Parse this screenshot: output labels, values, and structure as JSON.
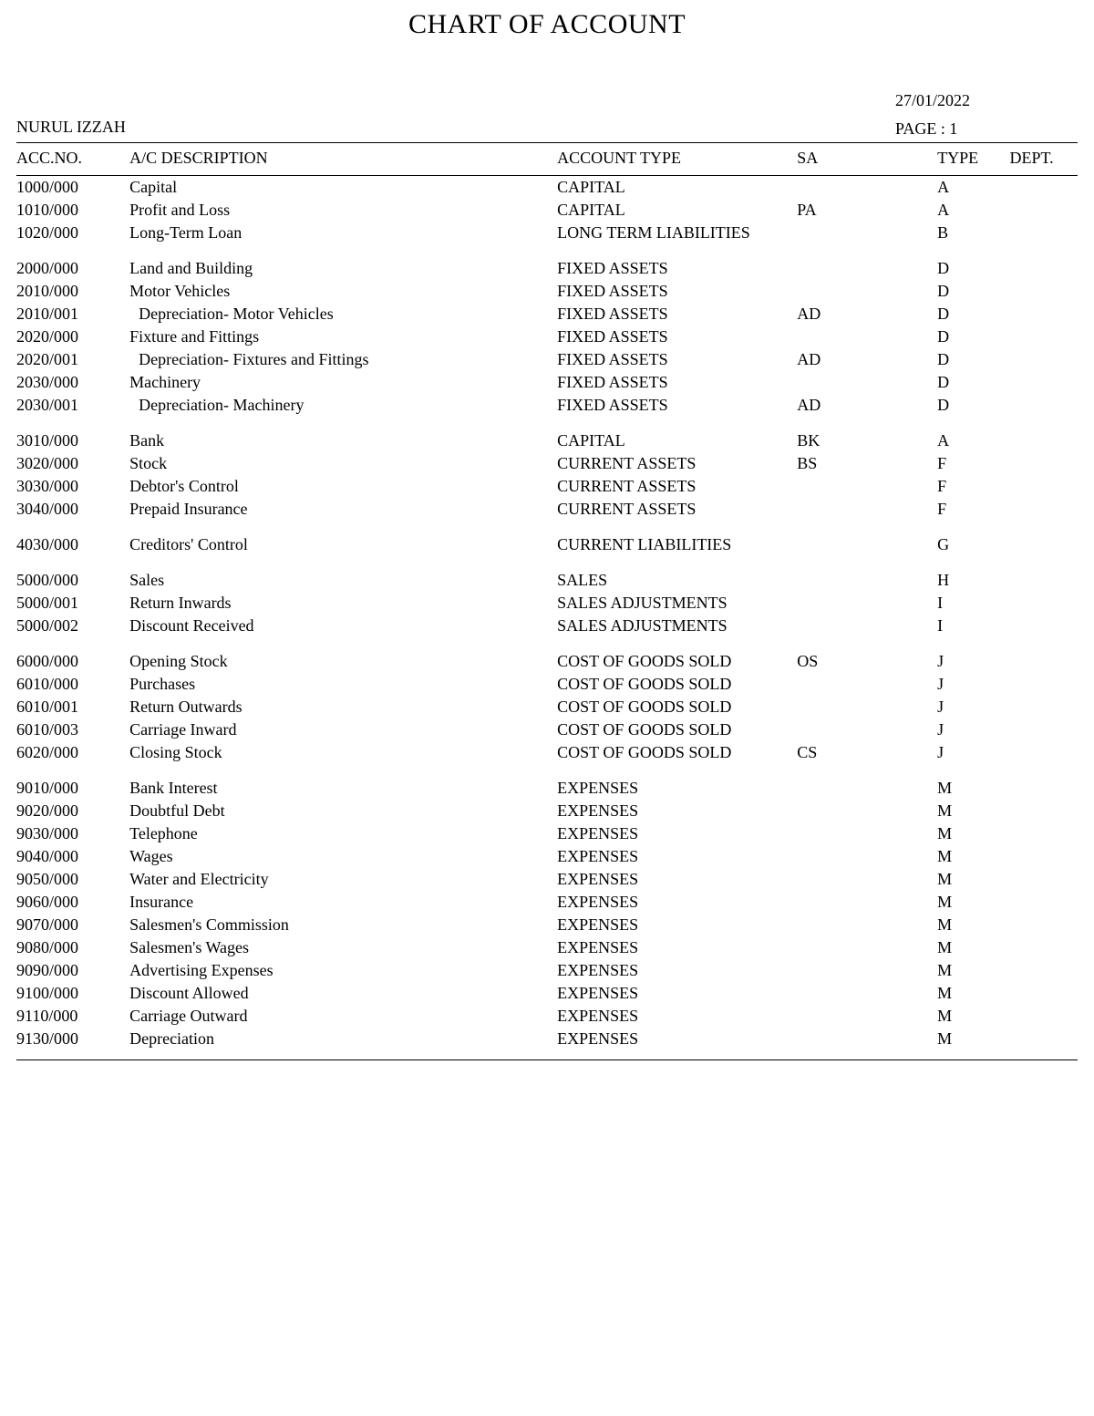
{
  "title": "CHART OF ACCOUNT",
  "company": "NURUL IZZAH",
  "date": "27/01/2022",
  "page_label": "PAGE : 1",
  "columns": {
    "acc_no": "ACC.NO.",
    "description": "A/C DESCRIPTION",
    "account_type": "ACCOUNT TYPE",
    "sa": "SA",
    "type": "TYPE",
    "dept": "DEPT."
  },
  "groups": [
    {
      "rows": [
        {
          "acc": "1000/000",
          "desc": "Capital",
          "atype": "CAPITAL",
          "sa": "",
          "type": "A",
          "dept": ""
        },
        {
          "acc": "1010/000",
          "desc": "Profit and Loss",
          "atype": "CAPITAL",
          "sa": "PA",
          "type": "A",
          "dept": ""
        },
        {
          "acc": "1020/000",
          "desc": "Long-Term Loan",
          "atype": "LONG TERM LIABILITIES",
          "sa": "",
          "type": "B",
          "dept": ""
        }
      ]
    },
    {
      "rows": [
        {
          "acc": "2000/000",
          "desc": "Land and Building",
          "atype": "FIXED ASSETS",
          "sa": "",
          "type": "D",
          "dept": ""
        },
        {
          "acc": "2010/000",
          "desc": "Motor Vehicles",
          "atype": "FIXED ASSETS",
          "sa": "",
          "type": "D",
          "dept": ""
        },
        {
          "acc": "2010/001",
          "desc": "Depreciation- Motor Vehicles",
          "atype": "FIXED ASSETS",
          "sa": "AD",
          "type": "D",
          "dept": "",
          "indent": true
        },
        {
          "acc": "2020/000",
          "desc": "Fixture and Fittings",
          "atype": "FIXED ASSETS",
          "sa": "",
          "type": "D",
          "dept": ""
        },
        {
          "acc": "2020/001",
          "desc": "Depreciation- Fixtures and Fittings",
          "atype": "FIXED ASSETS",
          "sa": "AD",
          "type": "D",
          "dept": "",
          "indent": true
        },
        {
          "acc": "2030/000",
          "desc": "Machinery",
          "atype": "FIXED ASSETS",
          "sa": "",
          "type": "D",
          "dept": ""
        },
        {
          "acc": "2030/001",
          "desc": "Depreciation- Machinery",
          "atype": "FIXED ASSETS",
          "sa": "AD",
          "type": "D",
          "dept": "",
          "indent": true
        }
      ]
    },
    {
      "rows": [
        {
          "acc": "3010/000",
          "desc": "Bank",
          "atype": "CAPITAL",
          "sa": "BK",
          "type": "A",
          "dept": ""
        },
        {
          "acc": "3020/000",
          "desc": "Stock",
          "atype": "CURRENT ASSETS",
          "sa": "BS",
          "type": "F",
          "dept": ""
        },
        {
          "acc": "3030/000",
          "desc": "Debtor's Control",
          "atype": "CURRENT ASSETS",
          "sa": "",
          "type": "F",
          "dept": ""
        },
        {
          "acc": "3040/000",
          "desc": "Prepaid Insurance",
          "atype": "CURRENT ASSETS",
          "sa": "",
          "type": "F",
          "dept": ""
        }
      ]
    },
    {
      "rows": [
        {
          "acc": "4030/000",
          "desc": "Creditors' Control",
          "atype": "CURRENT LIABILITIES",
          "sa": "",
          "type": "G",
          "dept": ""
        }
      ]
    },
    {
      "rows": [
        {
          "acc": "5000/000",
          "desc": "Sales",
          "atype": "SALES",
          "sa": "",
          "type": "H",
          "dept": ""
        },
        {
          "acc": "5000/001",
          "desc": "Return Inwards",
          "atype": "SALES ADJUSTMENTS",
          "sa": "",
          "type": "I",
          "dept": ""
        },
        {
          "acc": "5000/002",
          "desc": "Discount Received",
          "atype": "SALES ADJUSTMENTS",
          "sa": "",
          "type": "I",
          "dept": ""
        }
      ]
    },
    {
      "rows": [
        {
          "acc": "6000/000",
          "desc": "Opening Stock",
          "atype": "COST OF GOODS SOLD",
          "sa": "OS",
          "type": "J",
          "dept": ""
        },
        {
          "acc": "6010/000",
          "desc": "Purchases",
          "atype": "COST OF GOODS SOLD",
          "sa": "",
          "type": "J",
          "dept": ""
        },
        {
          "acc": "6010/001",
          "desc": "Return Outwards",
          "atype": "COST OF GOODS SOLD",
          "sa": "",
          "type": "J",
          "dept": ""
        },
        {
          "acc": "6010/003",
          "desc": "Carriage Inward",
          "atype": "COST OF GOODS SOLD",
          "sa": "",
          "type": "J",
          "dept": ""
        },
        {
          "acc": "6020/000",
          "desc": "Closing Stock",
          "atype": "COST OF GOODS SOLD",
          "sa": "CS",
          "type": "J",
          "dept": ""
        }
      ]
    },
    {
      "rows": [
        {
          "acc": "9010/000",
          "desc": "Bank Interest",
          "atype": "EXPENSES",
          "sa": "",
          "type": "M",
          "dept": ""
        },
        {
          "acc": "9020/000",
          "desc": "Doubtful Debt",
          "atype": "EXPENSES",
          "sa": "",
          "type": "M",
          "dept": ""
        },
        {
          "acc": "9030/000",
          "desc": "Telephone",
          "atype": "EXPENSES",
          "sa": "",
          "type": "M",
          "dept": ""
        },
        {
          "acc": "9040/000",
          "desc": "Wages",
          "atype": "EXPENSES",
          "sa": "",
          "type": "M",
          "dept": ""
        },
        {
          "acc": "9050/000",
          "desc": "Water and Electricity",
          "atype": "EXPENSES",
          "sa": "",
          "type": "M",
          "dept": ""
        },
        {
          "acc": "9060/000",
          "desc": "Insurance",
          "atype": "EXPENSES",
          "sa": "",
          "type": "M",
          "dept": ""
        },
        {
          "acc": "9070/000",
          "desc": "Salesmen's Commission",
          "atype": "EXPENSES",
          "sa": "",
          "type": "M",
          "dept": ""
        },
        {
          "acc": "9080/000",
          "desc": "Salesmen's Wages",
          "atype": "EXPENSES",
          "sa": "",
          "type": "M",
          "dept": ""
        },
        {
          "acc": "9090/000",
          "desc": "Advertising Expenses",
          "atype": "EXPENSES",
          "sa": "",
          "type": "M",
          "dept": ""
        },
        {
          "acc": "9100/000",
          "desc": "Discount Allowed",
          "atype": "EXPENSES",
          "sa": "",
          "type": "M",
          "dept": ""
        },
        {
          "acc": "9110/000",
          "desc": "Carriage Outward",
          "atype": "EXPENSES",
          "sa": "",
          "type": "M",
          "dept": ""
        },
        {
          "acc": "9130/000",
          "desc": "Depreciation",
          "atype": "EXPENSES",
          "sa": "",
          "type": "M",
          "dept": ""
        }
      ]
    }
  ]
}
